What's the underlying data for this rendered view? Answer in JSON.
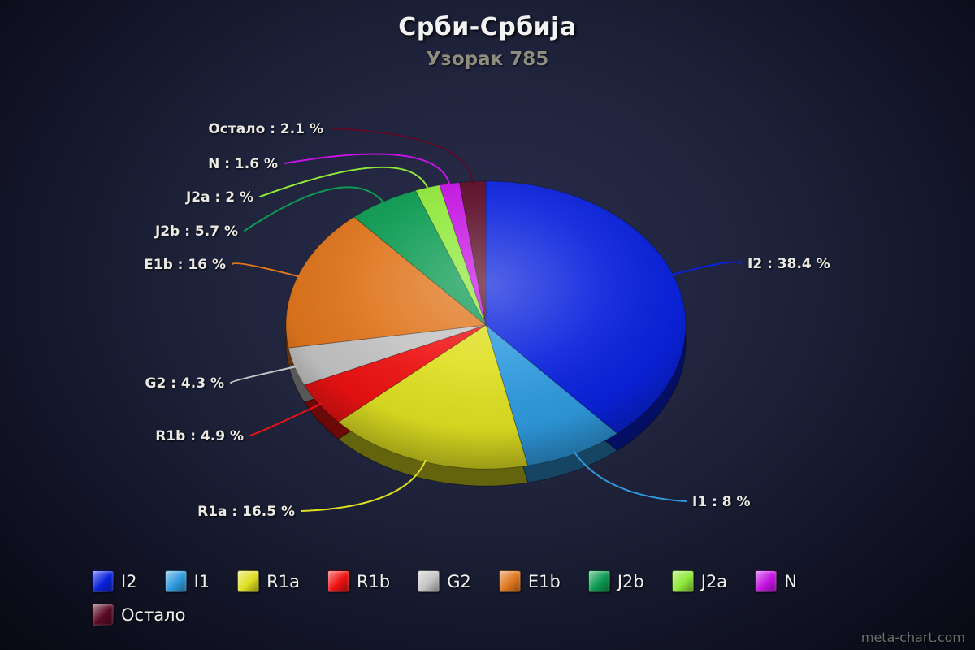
{
  "watermark": "meta-chart.com",
  "chart_data": {
    "type": "pie",
    "style": "3d-ellipse",
    "title": "Срби-Србија",
    "subtitle": "Узорак 785",
    "legend_position": "bottom",
    "series": [
      {
        "label": "I2",
        "value": 38.4,
        "color": "#0a22dd",
        "annotation": "I2 : 38.4 %"
      },
      {
        "label": "I1",
        "value": 8,
        "color": "#2f9ade",
        "annotation": "I1 : 8 %"
      },
      {
        "label": "R1a",
        "value": 16.5,
        "color": "#dfdf22",
        "annotation": "R1a : 16.5 %"
      },
      {
        "label": "R1b",
        "value": 4.9,
        "color": "#ee1212",
        "annotation": "R1b : 4.9 %"
      },
      {
        "label": "G2",
        "value": 4.3,
        "color": "#c4c4c4",
        "annotation": "G2 : 4.3 %"
      },
      {
        "label": "E1b",
        "value": 16,
        "color": "#e0761e",
        "annotation": "E1b : 16 %"
      },
      {
        "label": "J2b",
        "value": 5.7,
        "color": "#0c9b52",
        "annotation": "J2b : 5.7 %"
      },
      {
        "label": "J2a",
        "value": 2,
        "color": "#8fe83a",
        "annotation": "J2a : 2 %"
      },
      {
        "label": "N",
        "value": 1.6,
        "color": "#c514e2",
        "annotation": "N : 1.6 %"
      },
      {
        "label": "Остало",
        "value": 2.1,
        "color": "#5a0a26",
        "annotation": "Остало : 2.1 %"
      }
    ]
  }
}
